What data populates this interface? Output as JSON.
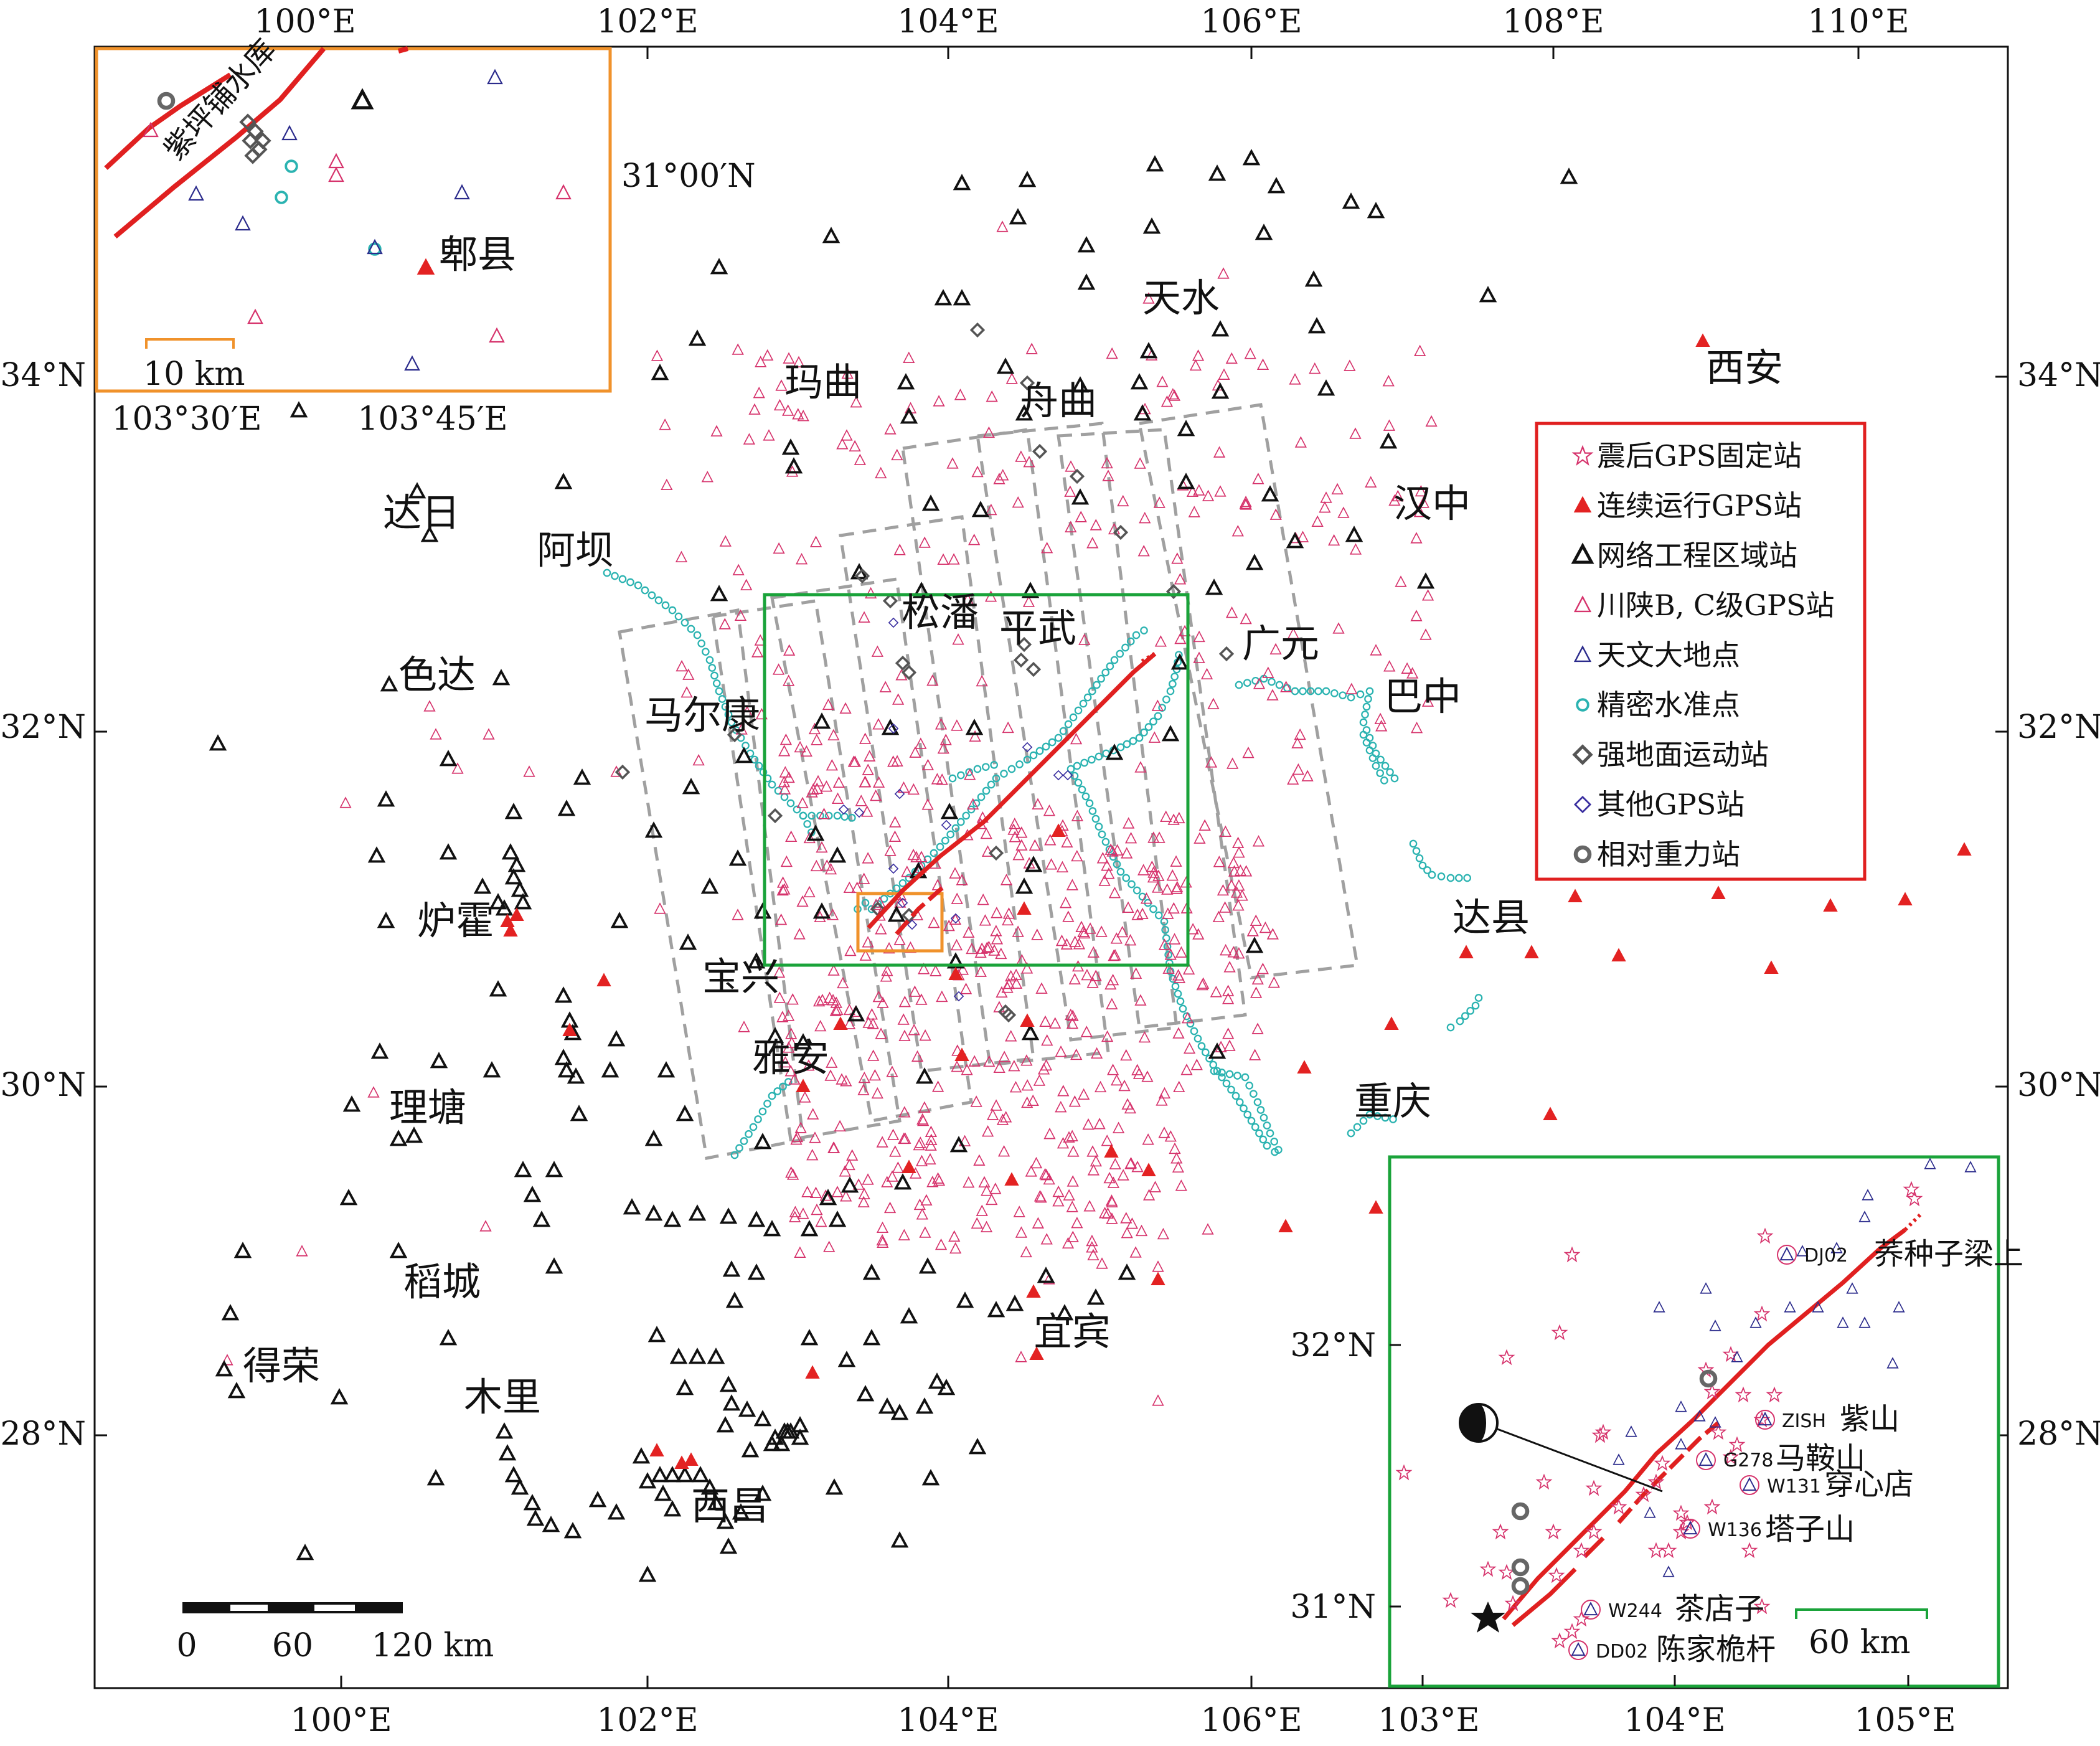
{
  "colors": {
    "fault": "#e02020",
    "continuous_gps": "#e32222",
    "network_station": "#111111",
    "sichuan_gps": "#d6336c",
    "astro_point": "#2b2b8c",
    "leveling": "#2bb3b1",
    "strong_motion": "#555555",
    "other_gps": "#3a2fa0",
    "gravity": "#666666",
    "green_box": "#1aa33a",
    "orange_box": "#f0922b",
    "legend_border": "#e02020",
    "dash_grey": "#a0a0a0"
  },
  "axes": {
    "top_lon": [
      "100°E",
      "102°E",
      "104°E",
      "106°E",
      "108°E",
      "110°E"
    ],
    "bottom_lon": [
      "100°E",
      "102°E",
      "104°E",
      "106°E"
    ],
    "left_lat": [
      "34°N",
      "32°N",
      "30°N",
      "28°N"
    ],
    "right_lat": [
      "34°N",
      "32°N",
      "30°N",
      "28°N"
    ]
  },
  "cities": [
    {
      "name": "天水"
    },
    {
      "name": "西安"
    },
    {
      "name": "玛曲"
    },
    {
      "name": "舟曲"
    },
    {
      "name": "汉中"
    },
    {
      "name": "达日"
    },
    {
      "name": "阿坝"
    },
    {
      "name": "松潘"
    },
    {
      "name": "平武"
    },
    {
      "name": "广元"
    },
    {
      "name": "色达"
    },
    {
      "name": "马尔康"
    },
    {
      "name": "巴中"
    },
    {
      "name": "达县"
    },
    {
      "name": "炉霍"
    },
    {
      "name": "宝兴"
    },
    {
      "name": "雅安"
    },
    {
      "name": "重庆"
    },
    {
      "name": "理塘"
    },
    {
      "name": "稻城"
    },
    {
      "name": "宜宾"
    },
    {
      "name": "得荣"
    },
    {
      "name": "木里"
    },
    {
      "name": "西昌"
    }
  ],
  "legend": {
    "items": [
      {
        "label": "震后GPS固定站",
        "icon": "star-open"
      },
      {
        "label": "连续运行GPS站",
        "icon": "triangle-filled-red"
      },
      {
        "label": "网络工程区域站",
        "icon": "triangle-open-black"
      },
      {
        "label": "川陕B, C级GPS站",
        "icon": "triangle-open-pink"
      },
      {
        "label": "天文大地点",
        "icon": "triangle-open-blue"
      },
      {
        "label": "精密水准点",
        "icon": "circle-open-cyan"
      },
      {
        "label": "强地面运动站",
        "icon": "diamond-open-grey"
      },
      {
        "label": "其他GPS站",
        "icon": "diamond-open-blue"
      },
      {
        "label": "相对重力站",
        "icon": "circle-open-grey"
      }
    ]
  },
  "scalebar": {
    "ticks": [
      "0",
      "60",
      "120 km"
    ]
  },
  "inset_reservoir": {
    "reservoir_label": "紫坪铺水库",
    "city": "郫县",
    "lat_label": "31°00′N",
    "lon_labels": [
      "103°30′E",
      "103°45′E"
    ],
    "scale_label": "10 km"
  },
  "inset_fault": {
    "lat_labels": [
      "32°N",
      "31°N"
    ],
    "lon_labels": [
      "103°E",
      "104°E",
      "105°E"
    ],
    "scale_label": "60 km",
    "end_label": "荞种子梁上",
    "stations": [
      {
        "code": "DJ02",
        "name": ""
      },
      {
        "code": "ZISH",
        "name": "紫山"
      },
      {
        "code": "G278",
        "name": "马鞍山"
      },
      {
        "code": "W131",
        "name": "穿心店"
      },
      {
        "code": "W136",
        "name": "塔子山"
      },
      {
        "code": "W244",
        "name": "茶店子"
      },
      {
        "code": "DD02",
        "name": "陈家桅杆"
      }
    ]
  }
}
